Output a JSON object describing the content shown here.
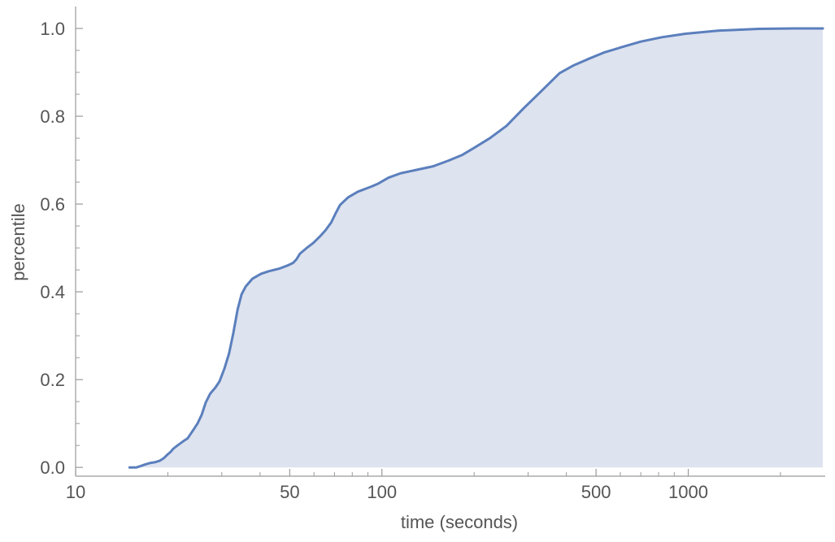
{
  "chart_data": {
    "type": "area",
    "title": "",
    "xlabel": "time (seconds)",
    "ylabel": "percentile",
    "x_scale": "log",
    "xlim": [
      10,
      2800
    ],
    "ylim": [
      -0.02,
      1.05
    ],
    "grid": false,
    "legend": "none",
    "x_ticks": [
      {
        "value": 10,
        "label": "10"
      },
      {
        "value": 50,
        "label": "50"
      },
      {
        "value": 100,
        "label": "100"
      },
      {
        "value": 500,
        "label": "500"
      },
      {
        "value": 1000,
        "label": "1000"
      }
    ],
    "x_minor_ticks": [
      20,
      30,
      40,
      60,
      70,
      80,
      90,
      200,
      300,
      400,
      600,
      700,
      800,
      900,
      2000
    ],
    "y_ticks": [
      {
        "value": 0.0,
        "label": "0.0"
      },
      {
        "value": 0.2,
        "label": "0.2"
      },
      {
        "value": 0.4,
        "label": "0.4"
      },
      {
        "value": 0.6,
        "label": "0.6"
      },
      {
        "value": 0.8,
        "label": "0.8"
      },
      {
        "value": 1.0,
        "label": "1.0"
      }
    ],
    "y_minor_ticks": [
      0.05,
      0.1,
      0.15,
      0.25,
      0.3,
      0.35,
      0.45,
      0.5,
      0.55,
      0.65,
      0.7,
      0.75,
      0.85,
      0.9,
      0.95
    ],
    "series": [
      {
        "line_color": "#5b7fbd",
        "fill_color": "#dde3ef",
        "x": [
          15,
          15.8,
          16.3,
          16.9,
          17.5,
          18.2,
          18.8,
          19.4,
          20,
          20.4,
          20.8,
          21.5,
          22.5,
          23.2,
          24.2,
          25,
          25.8,
          26.6,
          27.5,
          28.6,
          29.5,
          30.6,
          31.7,
          32.7,
          33.8,
          34.8,
          35.9,
          37.8,
          40.3,
          42.8,
          46.3,
          49.2,
          51.3,
          52.6,
          54,
          57.3,
          59.6,
          62.5,
          65.4,
          68.3,
          70.5,
          73,
          77.5,
          83.4,
          92.5,
          97.5,
          105,
          115,
          128,
          147,
          165,
          183,
          200,
          225,
          255,
          290,
          330,
          380,
          420,
          470,
          530,
          610,
          700,
          820,
          980,
          1250,
          1700,
          2200,
          2750
        ],
        "y": [
          0.0,
          0.0,
          0.003,
          0.007,
          0.01,
          0.012,
          0.015,
          0.021,
          0.03,
          0.035,
          0.042,
          0.05,
          0.06,
          0.066,
          0.085,
          0.1,
          0.12,
          0.148,
          0.168,
          0.182,
          0.196,
          0.225,
          0.26,
          0.305,
          0.36,
          0.394,
          0.412,
          0.43,
          0.441,
          0.447,
          0.453,
          0.46,
          0.466,
          0.474,
          0.487,
          0.502,
          0.511,
          0.525,
          0.54,
          0.558,
          0.578,
          0.598,
          0.615,
          0.628,
          0.64,
          0.647,
          0.66,
          0.67,
          0.677,
          0.686,
          0.699,
          0.712,
          0.728,
          0.75,
          0.778,
          0.818,
          0.856,
          0.898,
          0.915,
          0.93,
          0.945,
          0.958,
          0.97,
          0.98,
          0.988,
          0.995,
          0.999,
          1.0,
          1.0
        ]
      }
    ]
  }
}
